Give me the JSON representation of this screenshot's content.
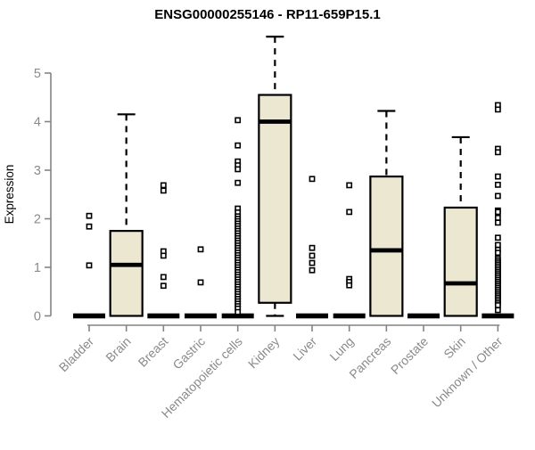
{
  "chart_data": {
    "type": "boxplot",
    "title": "ENSG00000255146 - RP11-659P15.1",
    "ylabel": "Expression",
    "xlabel": "",
    "ylim": [
      0,
      5
    ],
    "yticks": [
      0,
      1,
      2,
      3,
      4,
      5
    ],
    "grid": false,
    "legend": "none",
    "colors": {
      "box_fill": "#ece7d0",
      "box_stroke": "#000000",
      "median": "#000000",
      "axis": "#848484",
      "tick_label": "#8a8a8a",
      "title": "#000000",
      "background": "#ffffff"
    },
    "categories": [
      "Bladder",
      "Brain",
      "Breast",
      "Gastric",
      "Hematopoietic cells",
      "Kidney",
      "Liver",
      "Lung",
      "Pancreas",
      "Prostate",
      "Skin",
      "Unknown / Other"
    ],
    "series": [
      {
        "category": "Bladder",
        "whisker_low": 0,
        "q1": 0,
        "median": 0,
        "q3": 0,
        "whisker_high": 0,
        "outliers": [
          2.06,
          1.84,
          1.04
        ]
      },
      {
        "category": "Brain",
        "whisker_low": 0,
        "q1": 0,
        "median": 1.05,
        "q3": 1.75,
        "whisker_high": 4.15,
        "outliers": []
      },
      {
        "category": "Breast",
        "whisker_low": 0,
        "q1": 0,
        "median": 0,
        "q3": 0,
        "whisker_high": 0,
        "outliers": [
          2.69,
          2.58,
          1.33,
          1.24,
          0.8,
          0.62
        ]
      },
      {
        "category": "Gastric",
        "whisker_low": 0,
        "q1": 0,
        "median": 0,
        "q3": 0,
        "whisker_high": 0,
        "outliers": [
          1.37,
          0.69
        ]
      },
      {
        "category": "Hematopoietic cells",
        "whisker_low": 0,
        "q1": 0,
        "median": 0,
        "q3": 0,
        "whisker_high": 0,
        "outliers": [
          4.03,
          3.51,
          3.18,
          3.1,
          3.02,
          2.74,
          2.21,
          2.13,
          2.05,
          2.0,
          1.95,
          1.9,
          1.85,
          1.8,
          1.75,
          1.7,
          1.65,
          1.6,
          1.55,
          1.5,
          1.45,
          1.4,
          1.35,
          1.3,
          1.25,
          1.2,
          1.15,
          1.1,
          1.05,
          1.0,
          0.95,
          0.9,
          0.85,
          0.8,
          0.75,
          0.7,
          0.65,
          0.6,
          0.55,
          0.5,
          0.45,
          0.4,
          0.35,
          0.3,
          0.25,
          0.2,
          0.15,
          0.08
        ]
      },
      {
        "category": "Kidney",
        "whisker_low": 0,
        "q1": 0.27,
        "median": 4.0,
        "q3": 4.55,
        "whisker_high": 5.75,
        "outliers": []
      },
      {
        "category": "Liver",
        "whisker_low": 0,
        "q1": 0,
        "median": 0,
        "q3": 0,
        "whisker_high": 0,
        "outliers": [
          2.82,
          1.4,
          1.24,
          1.09,
          0.94
        ]
      },
      {
        "category": "Lung",
        "whisker_low": 0,
        "q1": 0,
        "median": 0,
        "q3": 0,
        "whisker_high": 0,
        "outliers": [
          2.69,
          2.14,
          0.76,
          0.7,
          0.63
        ]
      },
      {
        "category": "Pancreas",
        "whisker_low": 0,
        "q1": 0,
        "median": 1.35,
        "q3": 2.87,
        "whisker_high": 4.22,
        "outliers": []
      },
      {
        "category": "Prostate",
        "whisker_low": 0,
        "q1": 0,
        "median": 0,
        "q3": 0,
        "whisker_high": 0,
        "outliers": []
      },
      {
        "category": "Skin",
        "whisker_low": 0,
        "q1": 0,
        "median": 0.67,
        "q3": 2.23,
        "whisker_high": 3.68,
        "outliers": []
      },
      {
        "category": "Unknown / Other",
        "whisker_low": 0,
        "q1": 0,
        "median": 0,
        "q3": 0,
        "whisker_high": 0,
        "outliers": [
          4.34,
          4.25,
          3.44,
          3.37,
          2.87,
          2.7,
          2.47,
          2.17,
          2.14,
          2.02,
          1.92,
          1.61,
          1.46,
          1.36,
          1.3,
          1.18,
          1.14,
          1.1,
          1.06,
          1.02,
          0.98,
          0.94,
          0.9,
          0.86,
          0.82,
          0.78,
          0.74,
          0.7,
          0.66,
          0.62,
          0.58,
          0.54,
          0.5,
          0.46,
          0.42,
          0.38,
          0.34,
          0.3,
          0.26,
          0.22,
          0.12
        ]
      }
    ]
  }
}
